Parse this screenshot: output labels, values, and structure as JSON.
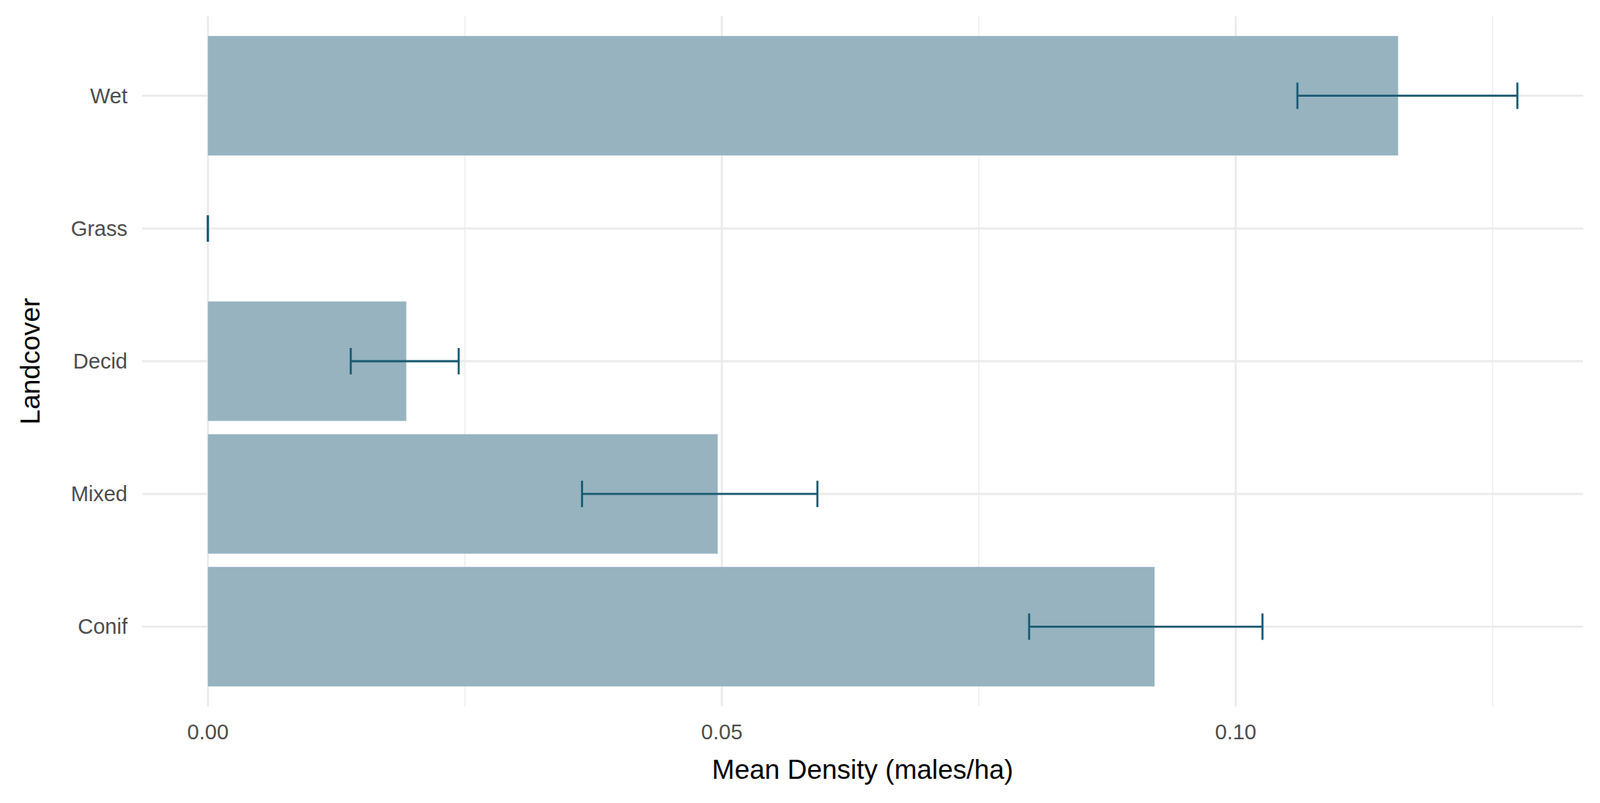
{
  "chart_data": {
    "type": "bar",
    "orientation": "horizontal",
    "x_label": "Mean Density (males/ha)",
    "y_label": "Landcover",
    "categories": [
      "Wet",
      "Grass",
      "Decid",
      "Mixed",
      "Conif"
    ],
    "values": [
      0.1158,
      0,
      0.0193,
      0.0496,
      0.0921
    ],
    "error_lower": [
      0.106,
      0,
      0.0139,
      0.0364,
      0.0799
    ],
    "error_upper": [
      0.1274,
      0,
      0.0244,
      0.0593,
      0.1026
    ],
    "color": "#96b3bf",
    "xlim": [
      -0.0064,
      0.1338
    ],
    "xticks": [
      {
        "value": 0,
        "label": "0.00"
      },
      {
        "value": 0.05,
        "label": "0.05"
      },
      {
        "value": 0.1,
        "label": "0.10"
      }
    ],
    "grid": true
  }
}
